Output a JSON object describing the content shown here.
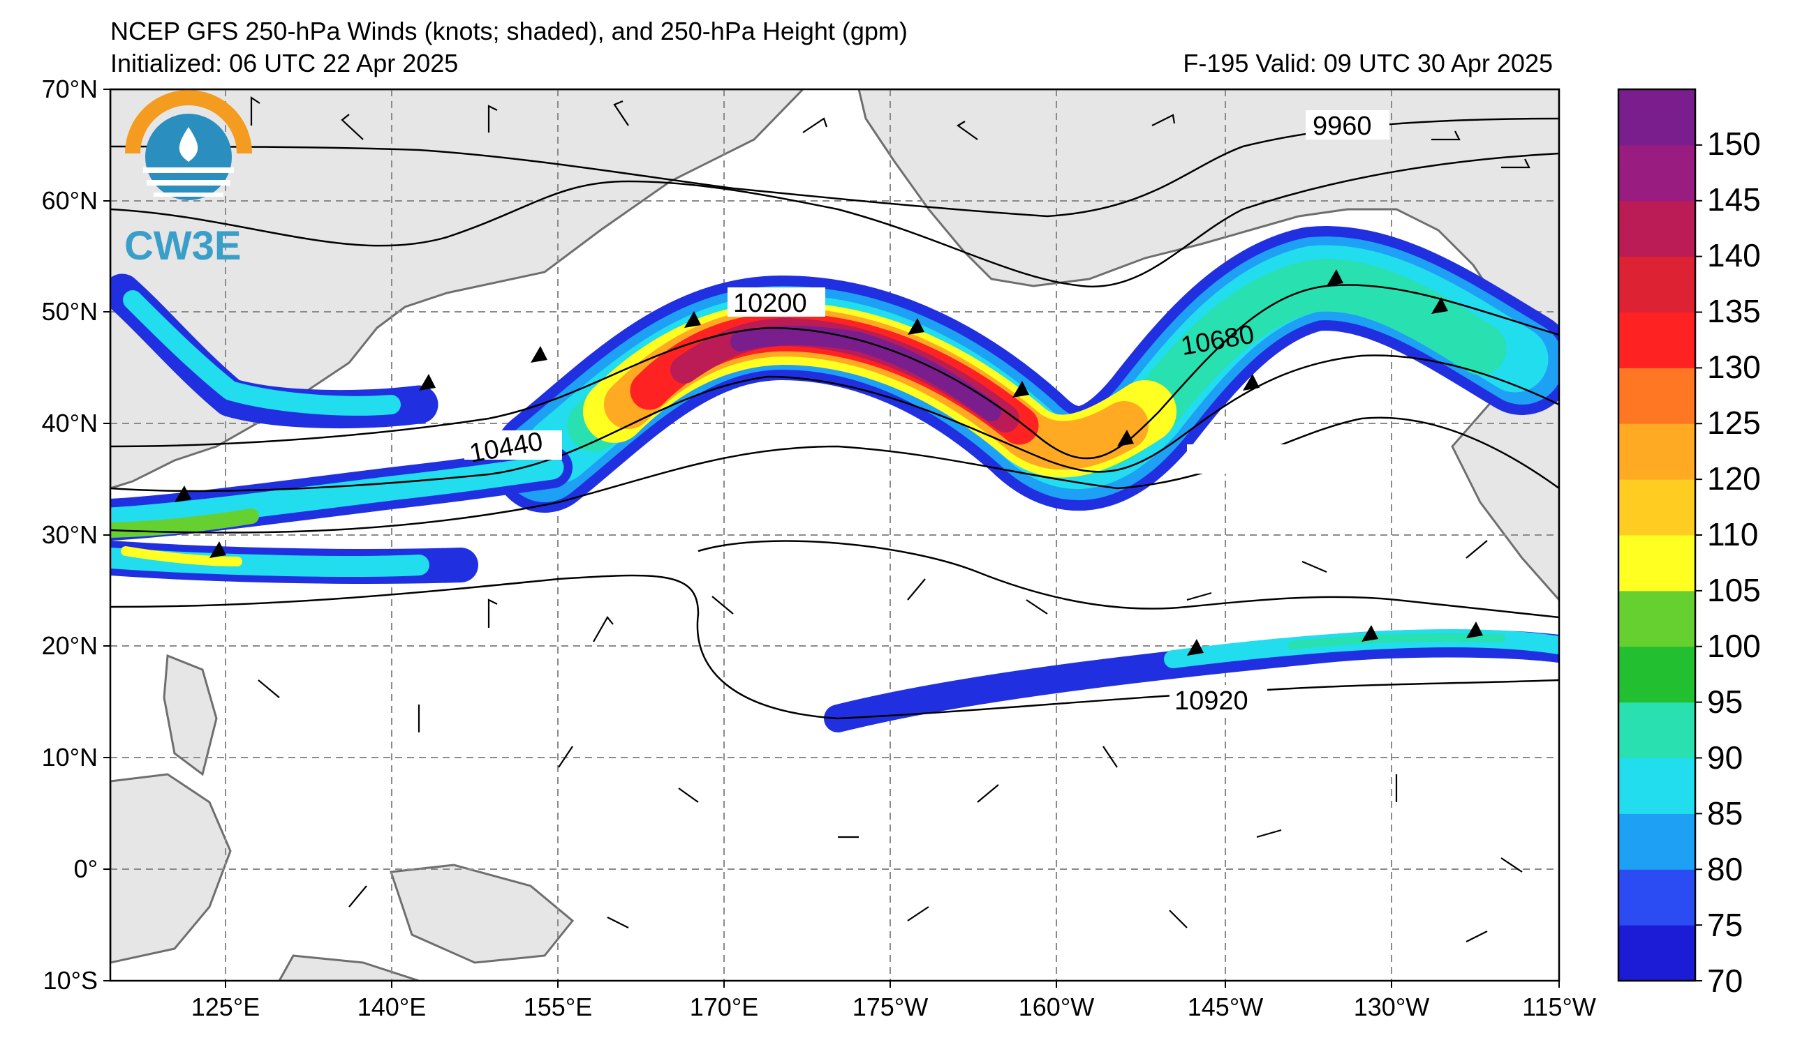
{
  "title": {
    "line1": "NCEP GFS 250-hPa Winds (knots; shaded), and 250-hPa Height (gpm)",
    "init": "Initialized: 06 UTC 22 Apr 2025",
    "valid": "F-195  Valid: 09 UTC 30 Apr 2025"
  },
  "logo": {
    "text": "CW3E",
    "ring_color_top": "#f39c1f",
    "ring_color_bottom": "#2a8fbf"
  },
  "axes": {
    "lat_labels": [
      "70°N",
      "60°N",
      "50°N",
      "40°N",
      "30°N",
      "20°N",
      "10°N",
      "0°",
      "10°S"
    ],
    "lon_labels": [
      "125°E",
      "140°E",
      "155°E",
      "170°E",
      "175°W",
      "160°W",
      "145°W",
      "130°W",
      "115°W"
    ]
  },
  "colorbar": {
    "labels": [
      "70",
      "75",
      "80",
      "85",
      "90",
      "95",
      "100",
      "105",
      "110",
      "120",
      "125",
      "130",
      "135",
      "140",
      "145",
      "150"
    ],
    "colors": [
      "#1c1cd6",
      "#2b4cf2",
      "#1ea0f5",
      "#22ddee",
      "#28e0b0",
      "#22c030",
      "#66d030",
      "#ffff22",
      "#ffcc22",
      "#ffaa22",
      "#ff7722",
      "#ff2222",
      "#dd2233",
      "#bb1c55",
      "#991c80",
      "#7a1e8e"
    ]
  },
  "contours": {
    "labels": [
      "9960",
      "10200",
      "10440",
      "10680",
      "10920"
    ]
  }
}
